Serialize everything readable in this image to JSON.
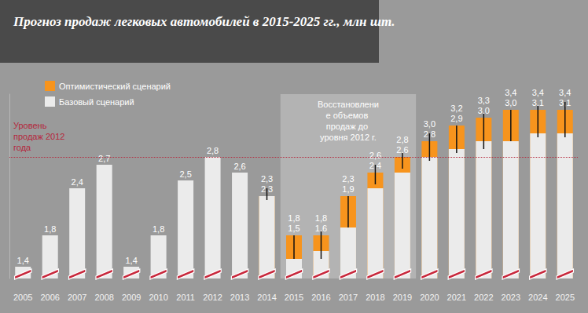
{
  "chart_data": {
    "type": "bar",
    "title": "Прогноз продаж легковых автомобилей в 2015-2025 гг., млн шт.",
    "categories": [
      "2005",
      "2006",
      "2007",
      "2008",
      "2009",
      "2010",
      "2011",
      "2012",
      "2013",
      "2014",
      "2015",
      "2016",
      "2017",
      "2018",
      "2019",
      "2020",
      "2021",
      "2022",
      "2023",
      "2024",
      "2025"
    ],
    "series": [
      {
        "name": "Оптимистический сценарий",
        "color": "#f7941d",
        "values": [
          null,
          null,
          null,
          null,
          null,
          null,
          null,
          null,
          null,
          2.3,
          1.8,
          1.8,
          2.3,
          2.6,
          2.8,
          3.0,
          3.2,
          3.3,
          3.4,
          3.4,
          3.4
        ],
        "value_labels": [
          null,
          null,
          null,
          null,
          null,
          null,
          null,
          null,
          null,
          "2,3",
          "1,8",
          "1,8",
          "2,3",
          "2,6",
          "2,8",
          "3,0",
          "3,2",
          "3,3",
          "3,4",
          "3,4",
          "3,4"
        ],
        "error_low": [
          null,
          null,
          null,
          null,
          null,
          null,
          null,
          null,
          null,
          2.25,
          1.5,
          1.5,
          1.9,
          2.45,
          2.65,
          2.75,
          2.85,
          2.9,
          3.0,
          3.05,
          3.05
        ],
        "error_high": [
          null,
          null,
          null,
          null,
          null,
          null,
          null,
          null,
          null,
          2.4,
          1.8,
          1.85,
          2.3,
          2.7,
          2.85,
          3.1,
          3.2,
          3.35,
          3.4,
          3.45,
          3.5
        ]
      },
      {
        "name": "Базовый сценарий",
        "color": "#ebebeb",
        "values": [
          1.4,
          1.8,
          2.4,
          2.7,
          1.4,
          1.8,
          2.5,
          2.8,
          2.6,
          2.3,
          1.5,
          1.6,
          1.9,
          2.4,
          2.6,
          2.8,
          2.9,
          3.0,
          3.0,
          3.1,
          3.1
        ],
        "value_labels": [
          "1,4",
          "1,8",
          "2,4",
          "2,7",
          "1,4",
          "1,8",
          "2,5",
          "2,8",
          "2,6",
          "2,3",
          "1,5",
          "1,6",
          "1,9",
          "2,4",
          "2,6",
          "2,8",
          "2,9",
          "3,0",
          "3,0",
          "3,1",
          "3,1"
        ]
      }
    ],
    "ylim": [
      1.25,
      3.6
    ],
    "tick_labels": "x",
    "grid": false,
    "legend": "upper left",
    "stacked": false,
    "data_labels": true,
    "reference_line": {
      "value": 2.8,
      "label": "Уровень продаж 2012 года",
      "color": "#b5283c",
      "line_style": "dotted"
    },
    "shaded_region": {
      "from": "2015",
      "to": "2019",
      "label": "Восстановление объемов продаж до уровня 2012 г."
    }
  }
}
